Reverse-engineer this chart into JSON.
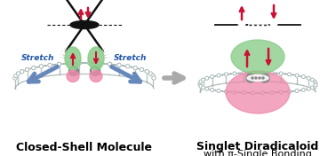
{
  "bg_color": "#ffffff",
  "title1": "Closed-Shell Molecule",
  "title2_line1": "Singlet Diradicaloid",
  "title2_line2": "with π-Single Bonding",
  "stretch_color": "#2255aa",
  "arrow_color": "#6688bb",
  "orbital_green": "#88cc88",
  "orbital_green_edge": "#449944",
  "orbital_pink": "#ee88aa",
  "orbital_pink_edge": "#cc4466",
  "spin_color": "#cc1133",
  "bond_gray": "#aabbcc",
  "bond_gray2": "#99aaaa",
  "mol_black": "#111111",
  "sphere_gray": "#888888",
  "figw": 3.78,
  "figh": 1.76,
  "dpi": 100
}
